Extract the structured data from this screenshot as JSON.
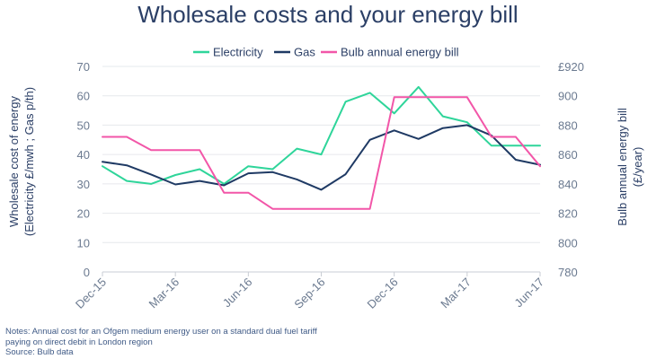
{
  "chart_data": {
    "type": "line",
    "title": "Wholesale costs and your energy bill",
    "y_left_label_lines": [
      "Wholesale cost of energy",
      "(Electricity £/mwh ; Gas p/th)"
    ],
    "y_right_label_lines": [
      "Bulb annual energy bill",
      "(£/year)"
    ],
    "y_left_ticks": [
      0,
      10,
      20,
      30,
      40,
      50,
      60,
      70
    ],
    "y_left_lim": [
      0,
      70
    ],
    "y_right_ticks": [
      "780",
      "800",
      "820",
      "840",
      "860",
      "880",
      "900",
      "£920"
    ],
    "y_right_lim": [
      780,
      920
    ],
    "x_tick_labels": [
      "Dec-15",
      "Mar-16",
      "Jun-16",
      "Sep-16",
      "Dec-16",
      "Mar-17",
      "Jun-17"
    ],
    "x_tick_months": [
      0,
      3,
      6,
      9,
      12,
      15,
      18
    ],
    "x_lim": [
      0,
      18
    ],
    "legend_position": "top",
    "series": [
      {
        "name": "Electricity",
        "axis": "left",
        "color": "#2fd59a",
        "x": [
          0,
          1,
          2,
          3,
          4,
          5,
          6,
          7,
          8,
          9,
          10,
          11,
          12,
          13,
          14,
          15,
          16,
          17,
          18
        ],
        "values": [
          36,
          31,
          30,
          33,
          35,
          30,
          36,
          35,
          42,
          40,
          58,
          61,
          54,
          63,
          53,
          51,
          43,
          43,
          43
        ]
      },
      {
        "name": "Gas",
        "axis": "left",
        "color": "#1f3a64",
        "x": [
          0,
          1,
          2,
          3,
          4,
          5,
          6,
          7,
          8,
          9,
          10,
          11,
          12,
          13,
          14,
          15,
          16,
          17,
          18
        ],
        "values": [
          37.5,
          36.3,
          33.2,
          29.8,
          31,
          29.5,
          33.6,
          34,
          31.5,
          28,
          33.3,
          45,
          48.2,
          45.3,
          49,
          50,
          46.5,
          38.2,
          36.5
        ]
      },
      {
        "name": "Bulb annual energy bill",
        "axis": "right",
        "color": "#f256a8",
        "x": [
          0,
          1,
          2,
          3,
          4,
          5,
          6,
          7,
          8,
          9,
          10,
          11,
          12,
          13,
          14,
          15,
          16,
          17,
          18
        ],
        "values": [
          872,
          872,
          863,
          863,
          863,
          834,
          834,
          823,
          823,
          823,
          823,
          823,
          899,
          899,
          899,
          899,
          872,
          872,
          852
        ]
      }
    ]
  },
  "notes": {
    "line1": "Notes: Annual cost for an Ofgem medium energy user on a standard dual fuel tariff",
    "line2": "paying on direct debit in London region",
    "line3": "Source: Bulb data"
  }
}
